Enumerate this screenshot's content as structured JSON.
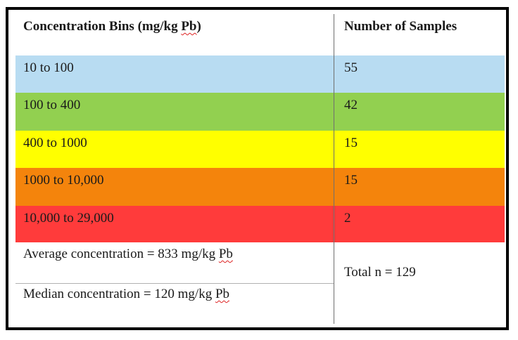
{
  "table": {
    "header": {
      "col1_prefix": "Concentration Bins (mg/kg ",
      "col1_unit": "Pb",
      "col1_suffix": ")",
      "col2": "Number of Samples"
    },
    "rows": [
      {
        "bin": "10 to 100",
        "count": "55",
        "color": "#b8dcf2"
      },
      {
        "bin": "100 to 400",
        "count": "42",
        "color": "#92d050"
      },
      {
        "bin": "400 to 1000",
        "count": "15",
        "color": "#ffff00"
      },
      {
        "bin": "1000 to 10,000",
        "count": "15",
        "color": "#f4840c"
      },
      {
        "bin": "10,000 to 29,000",
        "count": "2",
        "color": "#ff3b3b"
      }
    ],
    "stats": {
      "average_prefix": "Average concentration = 833 mg/kg ",
      "average_unit": "Pb",
      "median_prefix": "Median concentration = 120 mg/kg ",
      "median_unit": "Pb",
      "total": "Total n = 129"
    }
  }
}
